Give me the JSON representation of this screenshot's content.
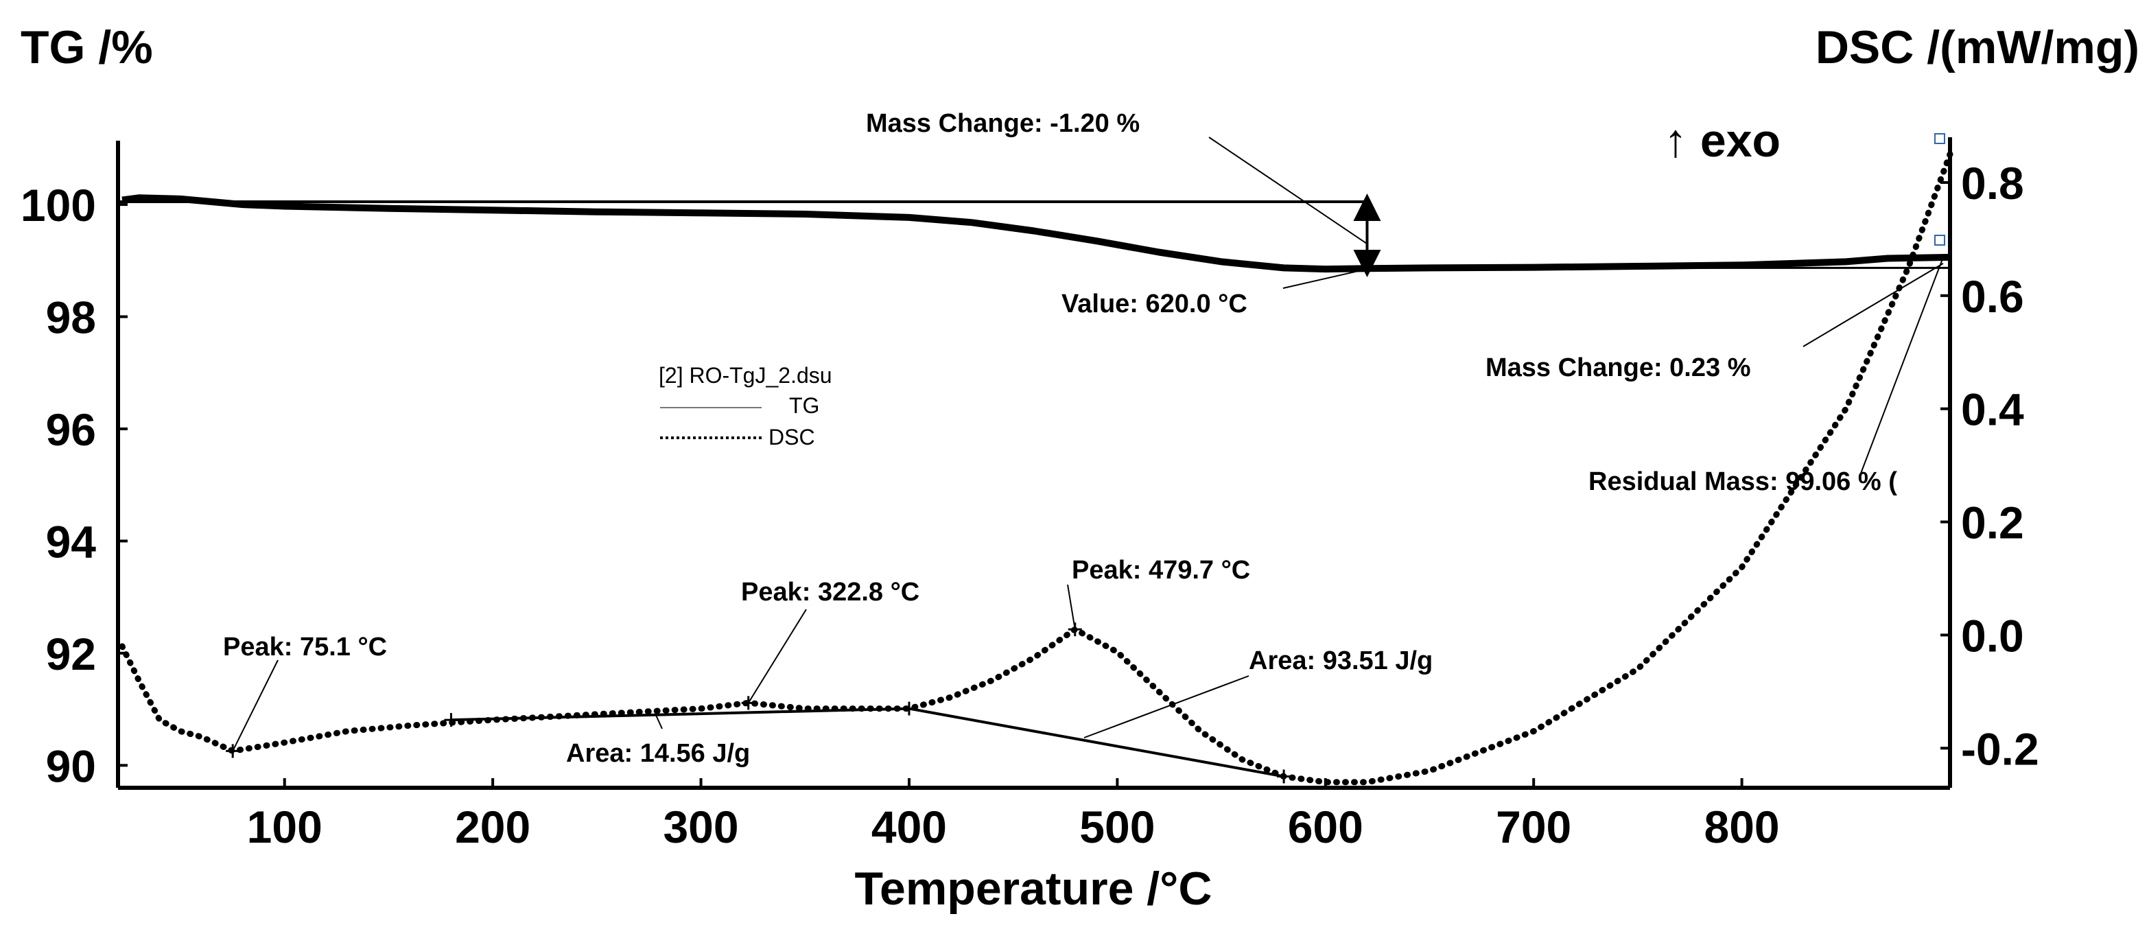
{
  "chart_data": {
    "type": "line",
    "title": "",
    "xlabel": "Temperature /°C",
    "ylabel_left": "TG /%",
    "ylabel_right": "DSC /(mW/mg)",
    "exo_marker": "↑ exo",
    "xlim": [
      20,
      900
    ],
    "ylim_left": [
      89.6,
      101.2
    ],
    "ylim_right": [
      -0.27,
      0.88
    ],
    "x_ticks": [
      100,
      200,
      300,
      400,
      500,
      600,
      700,
      800
    ],
    "y_left_ticks": [
      90,
      92,
      94,
      96,
      98,
      100
    ],
    "y_right_ticks": [
      -0.2,
      0.0,
      0.2,
      0.4,
      0.6,
      0.8
    ],
    "grid": false,
    "legend": {
      "file": "[2] RO-TgJ_2.dsu",
      "entries": [
        "TG",
        "DSC"
      ],
      "placement": "center-left"
    },
    "series": [
      {
        "name": "TG",
        "axis": "left",
        "unit": "%",
        "style": "solid",
        "x": [
          22,
          30,
          50,
          80,
          100,
          150,
          200,
          250,
          300,
          350,
          400,
          430,
          460,
          490,
          520,
          550,
          580,
          600,
          620,
          650,
          700,
          750,
          800,
          850,
          870,
          900
        ],
        "y": [
          100.08,
          100.12,
          100.1,
          100.0,
          99.97,
          99.93,
          99.9,
          99.87,
          99.85,
          99.83,
          99.77,
          99.68,
          99.53,
          99.35,
          99.15,
          98.98,
          98.87,
          98.85,
          98.86,
          98.87,
          98.88,
          98.9,
          98.92,
          98.98,
          99.04,
          99.06
        ]
      },
      {
        "name": "DSC",
        "axis": "right",
        "unit": "mW/mg",
        "style": "dotted",
        "x": [
          22,
          30,
          40,
          50,
          60,
          75.1,
          100,
          130,
          160,
          200,
          250,
          300,
          322.8,
          350,
          400,
          420,
          440,
          460,
          479.7,
          500,
          520,
          540,
          560,
          580,
          600,
          620,
          650,
          700,
          750,
          800,
          850,
          880,
          900
        ],
        "y": [
          -0.02,
          -0.08,
          -0.15,
          -0.17,
          -0.18,
          -0.205,
          -0.19,
          -0.17,
          -0.16,
          -0.15,
          -0.14,
          -0.13,
          -0.12,
          -0.13,
          -0.13,
          -0.11,
          -0.08,
          -0.04,
          0.01,
          -0.03,
          -0.1,
          -0.17,
          -0.22,
          -0.25,
          -0.26,
          -0.26,
          -0.24,
          -0.17,
          -0.06,
          0.12,
          0.4,
          0.65,
          0.85
        ]
      }
    ],
    "annotations": [
      {
        "label": "Peak: 75.1 °C",
        "series": "DSC",
        "x": 75.1,
        "y": -0.205
      },
      {
        "label": "Peak: 322.8 °C",
        "series": "DSC",
        "x": 322.8,
        "y": -0.12
      },
      {
        "label": "Peak: 479.7 °C",
        "series": "DSC",
        "x": 479.7,
        "y": 0.01
      },
      {
        "label": "Area: 14.56 J/g",
        "series": "DSC",
        "x_range": [
          180,
          400
        ]
      },
      {
        "label": "Area: 93.51 J/g",
        "series": "DSC",
        "x_range": [
          400,
          580
        ]
      },
      {
        "label": "Mass Change: -1.20 %",
        "series": "TG",
        "x": 620,
        "y_range": [
          100.05,
          98.85
        ]
      },
      {
        "label": "Value: 620.0 °C",
        "series": "TG",
        "x": 620,
        "y": 98.85
      },
      {
        "label": "Mass Change: 0.23 %",
        "series": "TG",
        "x": 900
      },
      {
        "label": "Residual Mass: 99.06 % (",
        "series": "TG",
        "x": 900,
        "y": 99.06
      }
    ]
  }
}
